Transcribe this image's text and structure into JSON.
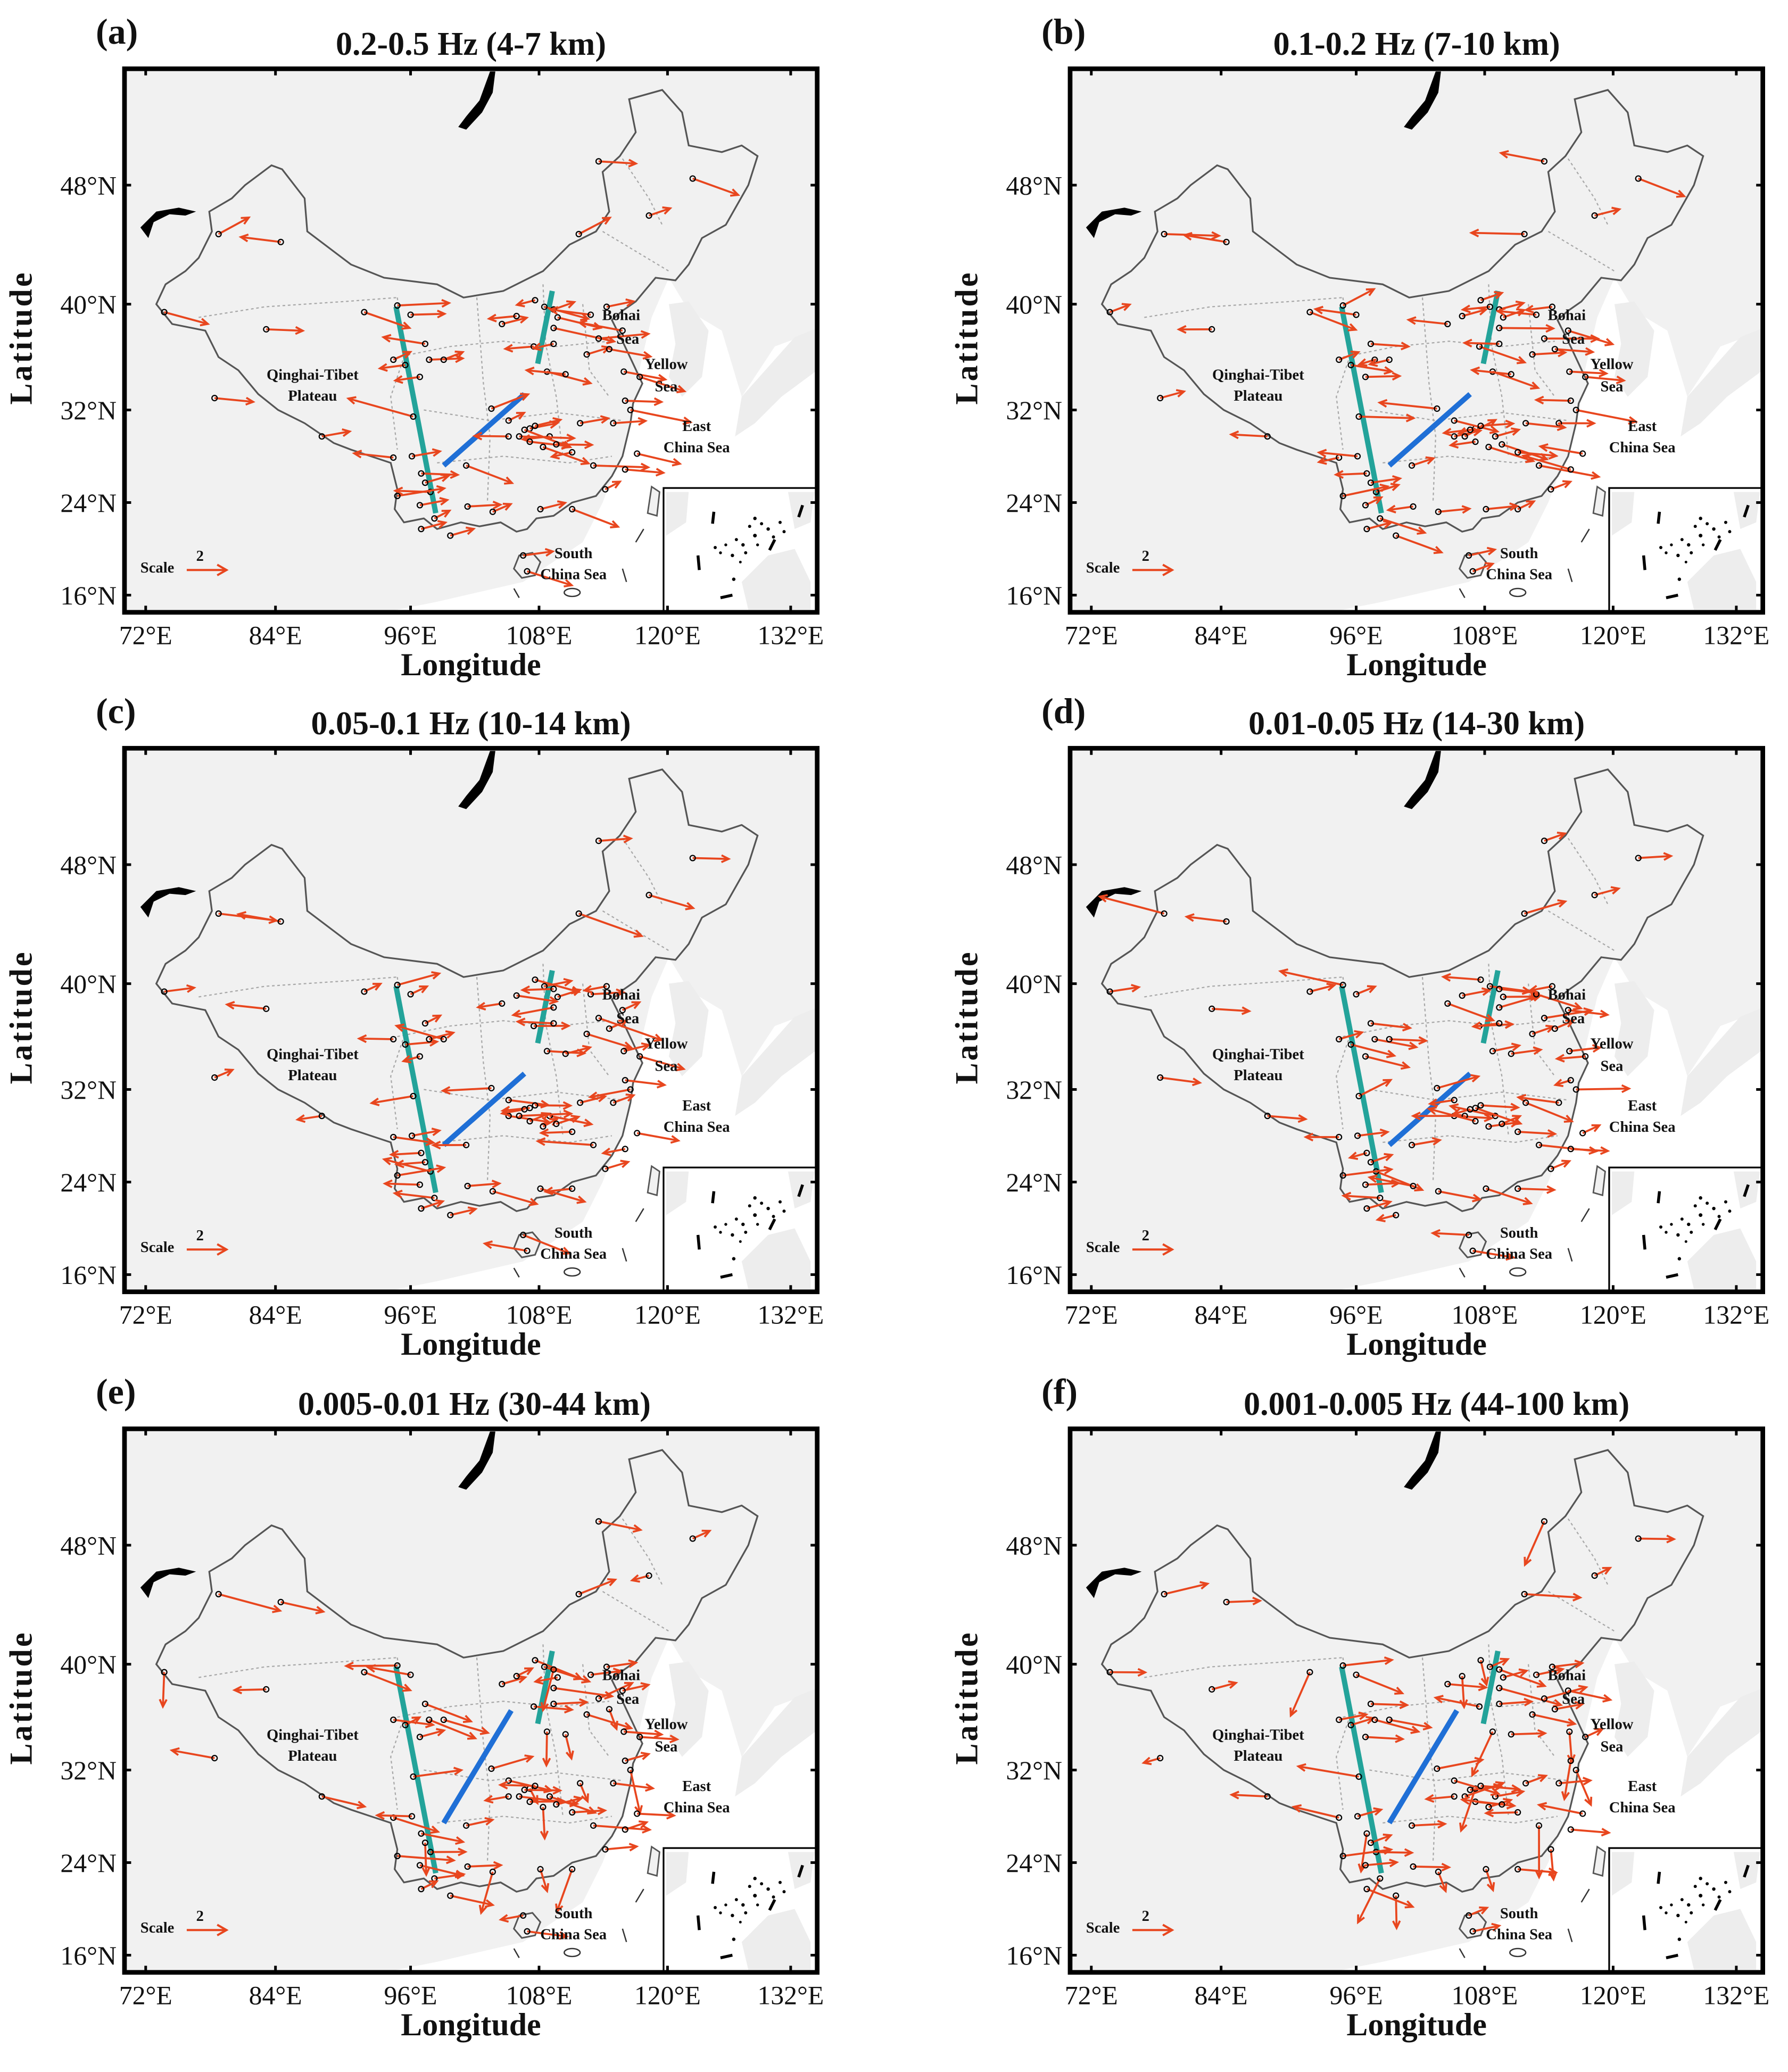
{
  "figure": {
    "panels": [
      {
        "letter": "(a)",
        "title": "0.2-0.5 Hz (4-7 km)",
        "freq_band_hz": "0.2-0.5",
        "depth_km": "4-7"
      },
      {
        "letter": "(b)",
        "title": "0.1-0.2 Hz (7-10 km)",
        "freq_band_hz": "0.1-0.2",
        "depth_km": "7-10"
      },
      {
        "letter": "(c)",
        "title": "0.05-0.1 Hz (10-14 km)",
        "freq_band_hz": "0.05-0.1",
        "depth_km": "10-14"
      },
      {
        "letter": "(d)",
        "title": "0.01-0.05 Hz (14-30 km)",
        "freq_band_hz": "0.01-0.05",
        "depth_km": "14-30"
      },
      {
        "letter": "(e)",
        "title": "0.005-0.01 Hz (30-44 km)",
        "freq_band_hz": "0.005-0.01",
        "depth_km": "30-44"
      },
      {
        "letter": "(f)",
        "title": "0.001-0.005 Hz (44-100 km)",
        "freq_band_hz": "0.001-0.005",
        "depth_km": "44-100"
      }
    ],
    "axes": {
      "xlabel": "Longitude",
      "ylabel": "Latitude",
      "xticks": [
        "72°E",
        "84°E",
        "96°E",
        "108°E",
        "120°E",
        "132°E"
      ],
      "yticks": [
        "48°N",
        "40°N",
        "32°N",
        "24°N",
        "16°N"
      ]
    },
    "map_labels": {
      "plateau_line1": "Qinghai-Tibet",
      "plateau_line2": "Plateau",
      "bohai_line1": "Bohai",
      "bohai_line2": "Sea",
      "yellow_line1": "Yellow",
      "yellow_line2": "Sea",
      "east_line1": "East",
      "east_line2": "China Sea",
      "south_line1": "South",
      "south_line2": "China Sea"
    },
    "scale": {
      "label": "Scale",
      "value": "2"
    },
    "colors": {
      "arrow": "#E8461E",
      "profile_teal": "#23A39A",
      "profile_blue": "#1F6FD6",
      "land": "#F1F1F1",
      "border": "#555555",
      "frame": "#000000"
    }
  },
  "chart_data": {
    "type": "vector-map",
    "title": "Station vector field (orange arrows) across China for six frequency bands / depth ranges",
    "xlabel": "Longitude",
    "ylabel": "Latitude",
    "xlim": [
      "72°E",
      "136°E"
    ],
    "ylim": [
      "14°N",
      "56°N"
    ],
    "xticks": [
      "72°E",
      "84°E",
      "96°E",
      "108°E",
      "120°E",
      "132°E"
    ],
    "yticks": [
      "48°N",
      "40°N",
      "32°N",
      "24°N",
      "16°N"
    ],
    "panels": [
      {
        "id": "a",
        "band": "0.2-0.5 Hz",
        "depth": "4-7 km"
      },
      {
        "id": "b",
        "band": "0.1-0.2 Hz",
        "depth": "7-10 km"
      },
      {
        "id": "c",
        "band": "0.05-0.1 Hz",
        "depth": "10-14 km"
      },
      {
        "id": "d",
        "band": "0.01-0.05 Hz",
        "depth": "14-30 km"
      },
      {
        "id": "e",
        "band": "0.005-0.01 Hz",
        "depth": "30-44 km"
      },
      {
        "id": "f",
        "band": "0.001-0.005 Hz",
        "depth": "44-100 km"
      }
    ],
    "profiles": [
      {
        "name": "teal profile west",
        "color": "#23A39A",
        "from": [
          99,
          40
        ],
        "to": [
          102,
          23
        ]
      },
      {
        "name": "teal profile north",
        "color": "#23A39A",
        "from": [
          113,
          41
        ],
        "to": [
          112,
          35
        ]
      },
      {
        "name": "blue profile",
        "color": "#1F6FD6",
        "from_ab": [
          103,
          27
        ],
        "to_ab": [
          110,
          33
        ],
        "from_ef": [
          103,
          27
        ],
        "to_ef": [
          108,
          36
        ]
      }
    ],
    "annotations": [
      "Qinghai-Tibet Plateau",
      "Bohai Sea",
      "Yellow Sea",
      "East China Sea",
      "South China Sea"
    ],
    "scale_arrow": {
      "label": "Scale",
      "value": 2
    },
    "legend": "none",
    "grid": false
  }
}
